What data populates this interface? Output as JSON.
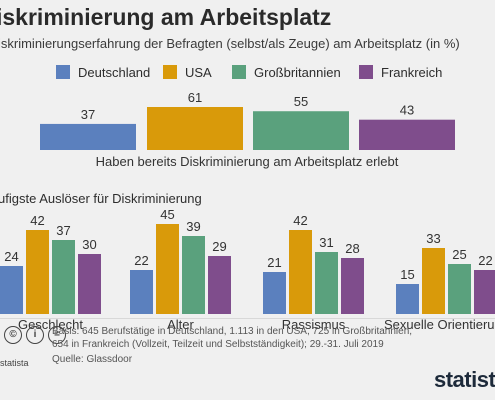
{
  "header": {
    "title": "iskriminierung am Arbeitsplatz",
    "subtitle": "iskriminierungserfahrung der Befragten (selbst/als Zeuge) am Arbeitsplatz (in %)"
  },
  "legend": [
    {
      "label": "Deutschland",
      "color": "#5b80be"
    },
    {
      "label": "USA",
      "color": "#d99a0a"
    },
    {
      "label": "Großbritannien",
      "color": "#5aa17d"
    },
    {
      "label": "Frankreich",
      "color": "#7f4d8c"
    }
  ],
  "section2_title": "ufigste Auslöser für Diskriminierung",
  "chart_data": [
    {
      "type": "bar",
      "categories": [
        "Haben bereits Diskriminierung am Arbeitsplatz erlebt"
      ],
      "series": [
        {
          "name": "Deutschland",
          "values": [
            37
          ]
        },
        {
          "name": "USA",
          "values": [
            61
          ]
        },
        {
          "name": "Großbritannien",
          "values": [
            55
          ]
        },
        {
          "name": "Frankreich",
          "values": [
            43
          ]
        }
      ]
    },
    {
      "type": "bar",
      "title": "ufigste Auslöser für Diskriminierung",
      "categories": [
        "Geschlecht",
        "Alter",
        "Rassismus",
        "Sexuelle Orientierung"
      ],
      "series": [
        {
          "name": "Deutschland",
          "values": [
            24,
            22,
            21,
            15
          ]
        },
        {
          "name": "USA",
          "values": [
            42,
            45,
            42,
            33
          ]
        },
        {
          "name": "Großbritannien",
          "values": [
            37,
            39,
            31,
            25
          ]
        },
        {
          "name": "Frankreich",
          "values": [
            30,
            29,
            28,
            22
          ]
        }
      ]
    }
  ],
  "footer": {
    "basis_line1": "Basis: 645 Berufstätige in Deutschland, 1.113 in den USA, 725 in Großbritannien,",
    "basis_line2": "654 in Frankreich (Vollzeit, Teilzeit und Selbstständigkeit); 29.-31. Juli 2019",
    "source": "Quelle: Glassdoor",
    "statista_small": "statista",
    "logo": "statista",
    "cc_icons": [
      "cc-icon",
      "by-icon",
      "equals-icon"
    ]
  }
}
